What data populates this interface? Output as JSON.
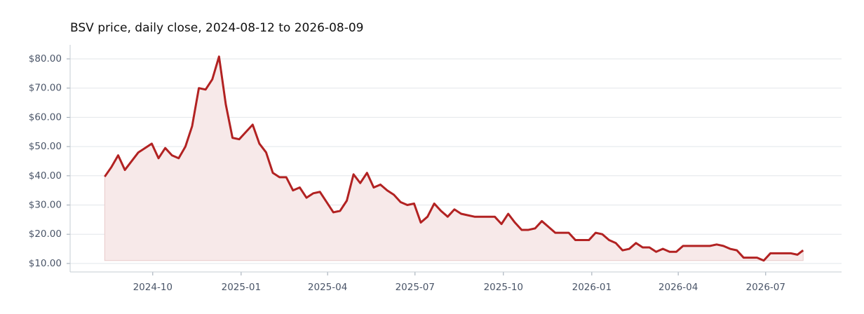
{
  "chart_data": {
    "type": "line",
    "title": "BSV price, daily close, 2024-08-12 to 2026-08-09",
    "x": [
      "2024-08-12",
      "2024-08-19",
      "2024-08-26",
      "2024-09-02",
      "2024-09-09",
      "2024-09-16",
      "2024-09-23",
      "2024-09-30",
      "2024-10-07",
      "2024-10-14",
      "2024-10-21",
      "2024-10-28",
      "2024-11-04",
      "2024-11-11",
      "2024-11-18",
      "2024-11-25",
      "2024-12-02",
      "2024-12-09",
      "2024-12-16",
      "2024-12-23",
      "2024-12-30",
      "2025-01-06",
      "2025-01-13",
      "2025-01-20",
      "2025-01-27",
      "2025-02-03",
      "2025-02-10",
      "2025-02-17",
      "2025-02-24",
      "2025-03-03",
      "2025-03-10",
      "2025-03-17",
      "2025-03-24",
      "2025-03-31",
      "2025-04-07",
      "2025-04-14",
      "2025-04-21",
      "2025-04-28",
      "2025-05-05",
      "2025-05-12",
      "2025-05-19",
      "2025-05-26",
      "2025-06-02",
      "2025-06-09",
      "2025-06-16",
      "2025-06-23",
      "2025-06-30",
      "2025-07-07",
      "2025-07-14",
      "2025-07-21",
      "2025-07-28",
      "2025-08-04",
      "2025-08-11",
      "2025-08-18",
      "2025-08-25",
      "2025-09-01",
      "2025-09-08",
      "2025-09-15",
      "2025-09-22",
      "2025-09-29",
      "2025-10-06",
      "2025-10-13",
      "2025-10-20",
      "2025-10-27",
      "2025-11-03",
      "2025-11-10",
      "2025-11-17",
      "2025-11-24",
      "2025-12-01",
      "2025-12-08",
      "2025-12-15",
      "2025-12-22",
      "2025-12-29",
      "2026-01-05",
      "2026-01-12",
      "2026-01-19",
      "2026-01-26",
      "2026-02-02",
      "2026-02-09",
      "2026-02-16",
      "2026-02-23",
      "2026-03-02",
      "2026-03-09",
      "2026-03-16",
      "2026-03-23",
      "2026-03-30",
      "2026-04-06",
      "2026-04-13",
      "2026-04-20",
      "2026-04-27",
      "2026-05-04",
      "2026-05-11",
      "2026-05-18",
      "2026-05-25",
      "2026-06-01",
      "2026-06-08",
      "2026-06-15",
      "2026-06-22",
      "2026-06-29",
      "2026-07-06",
      "2026-07-13",
      "2026-07-20",
      "2026-07-27",
      "2026-08-03",
      "2026-08-09"
    ],
    "series": [
      {
        "name": "BSV",
        "color": "#b22222",
        "fill": "#f7e9e9",
        "values": [
          39.7,
          43,
          47,
          42,
          45,
          48,
          49.5,
          51,
          46,
          49.5,
          47,
          46,
          50,
          57,
          70,
          69.5,
          73,
          80.8,
          64.5,
          53,
          52.5,
          55,
          57.5,
          51,
          48,
          41,
          39.5,
          39.5,
          35,
          36,
          32.5,
          34,
          34.5,
          31,
          27.5,
          28,
          31.5,
          40.5,
          37.5,
          41,
          36,
          37,
          35,
          33.5,
          31,
          30,
          30.5,
          24,
          26,
          30.5,
          28,
          26,
          28.5,
          27,
          26.5,
          26,
          26,
          26,
          26,
          23.5,
          27,
          24,
          21.5,
          21.5,
          22,
          24.5,
          22.5,
          20.5,
          20.5,
          20.5,
          18,
          18,
          18,
          20.5,
          20,
          18,
          17,
          14.5,
          15,
          17,
          15.5,
          15.5,
          14,
          15,
          14,
          14,
          16,
          16,
          16,
          16,
          16,
          16.5,
          16,
          15,
          14.5,
          12,
          12,
          12,
          11,
          13.5,
          13.5,
          13.5,
          13.5,
          13,
          14.5
        ]
      }
    ],
    "xlim": [
      "2024-07-07",
      "2026-09-18"
    ],
    "xticks": [
      {
        "value": "2024-10-01",
        "label": "2024-10"
      },
      {
        "value": "2025-01-01",
        "label": "2025-01"
      },
      {
        "value": "2025-04-01",
        "label": "2025-04"
      },
      {
        "value": "2025-07-01",
        "label": "2025-07"
      },
      {
        "value": "2025-10-01",
        "label": "2025-10"
      },
      {
        "value": "2026-01-01",
        "label": "2026-01"
      },
      {
        "value": "2026-04-01",
        "label": "2026-04"
      },
      {
        "value": "2026-07-01",
        "label": "2026-07"
      }
    ],
    "ylim": [
      7.1,
      84.8
    ],
    "yticks": [
      {
        "value": 10,
        "label": "$10.00"
      },
      {
        "value": 20,
        "label": "$20.00"
      },
      {
        "value": 30,
        "label": "$30.00"
      },
      {
        "value": 40,
        "label": "$40.00"
      },
      {
        "value": 50,
        "label": "$50.00"
      },
      {
        "value": 60,
        "label": "$60.00"
      },
      {
        "value": 70,
        "label": "$70.00"
      },
      {
        "value": 80,
        "label": "$80.00"
      }
    ],
    "grid": true
  }
}
